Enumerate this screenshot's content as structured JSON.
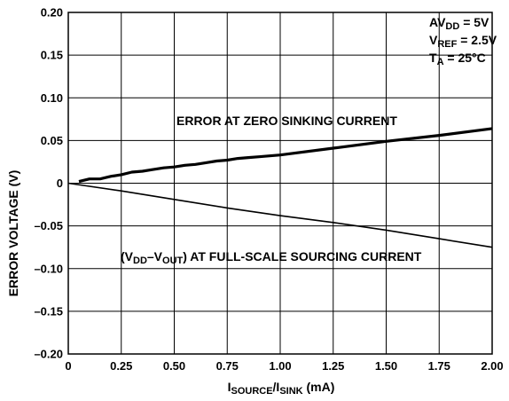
{
  "chart_data": {
    "type": "line",
    "title": "",
    "xlabel": {
      "base1": "I",
      "sub1": "SOURCE",
      "sep": "/I",
      "sub2": "SINK",
      "tail": " (mA)"
    },
    "ylabel": "ERROR VOLTAGE (V)",
    "xlim": [
      0,
      2.0
    ],
    "ylim": [
      -0.2,
      0.2
    ],
    "x_ticks": [
      "0",
      "0.25",
      "0.50",
      "0.75",
      "1.00",
      "1.25",
      "1.50",
      "1.75",
      "2.00"
    ],
    "y_ticks": [
      "0.20",
      "0.15",
      "0.10",
      "0.05",
      "0",
      "–0.05",
      "–0.10",
      "–0.15",
      "–0.20"
    ],
    "grid": true,
    "conditions": {
      "line1": {
        "base": "AV",
        "sub": "DD",
        "tail": " = 5V"
      },
      "line2": {
        "base": "V",
        "sub": "REF",
        "tail": " = 2.5V"
      },
      "line3": {
        "base": "T",
        "sub": "A",
        "tail": " = 25°C"
      }
    },
    "series": [
      {
        "label": "ERROR AT ZERO SINKING CURRENT",
        "x": [
          0.05,
          0.1,
          0.15,
          0.2,
          0.25,
          0.3,
          0.35,
          0.4,
          0.45,
          0.5,
          0.55,
          0.6,
          0.65,
          0.7,
          0.75,
          0.8,
          0.85,
          0.9,
          0.95,
          1.0,
          1.25,
          1.5,
          1.75,
          2.0
        ],
        "y": [
          0.002,
          0.005,
          0.005,
          0.008,
          0.01,
          0.013,
          0.014,
          0.016,
          0.018,
          0.019,
          0.021,
          0.022,
          0.024,
          0.026,
          0.027,
          0.029,
          0.03,
          0.031,
          0.032,
          0.033,
          0.041,
          0.049,
          0.056,
          0.064
        ]
      },
      {
        "label_parts": {
          "open": "(V",
          "sub1": "DD",
          "dash": "–V",
          "sub2": "OUT",
          "tail": ") AT FULL-SCALE SOURCING CURRENT"
        },
        "x": [
          0,
          0.25,
          0.5,
          0.75,
          1.0,
          1.25,
          1.5,
          1.75,
          2.0
        ],
        "y": [
          0.0,
          -0.009,
          -0.019,
          -0.029,
          -0.038,
          -0.046,
          -0.055,
          -0.065,
          -0.075
        ]
      }
    ]
  }
}
